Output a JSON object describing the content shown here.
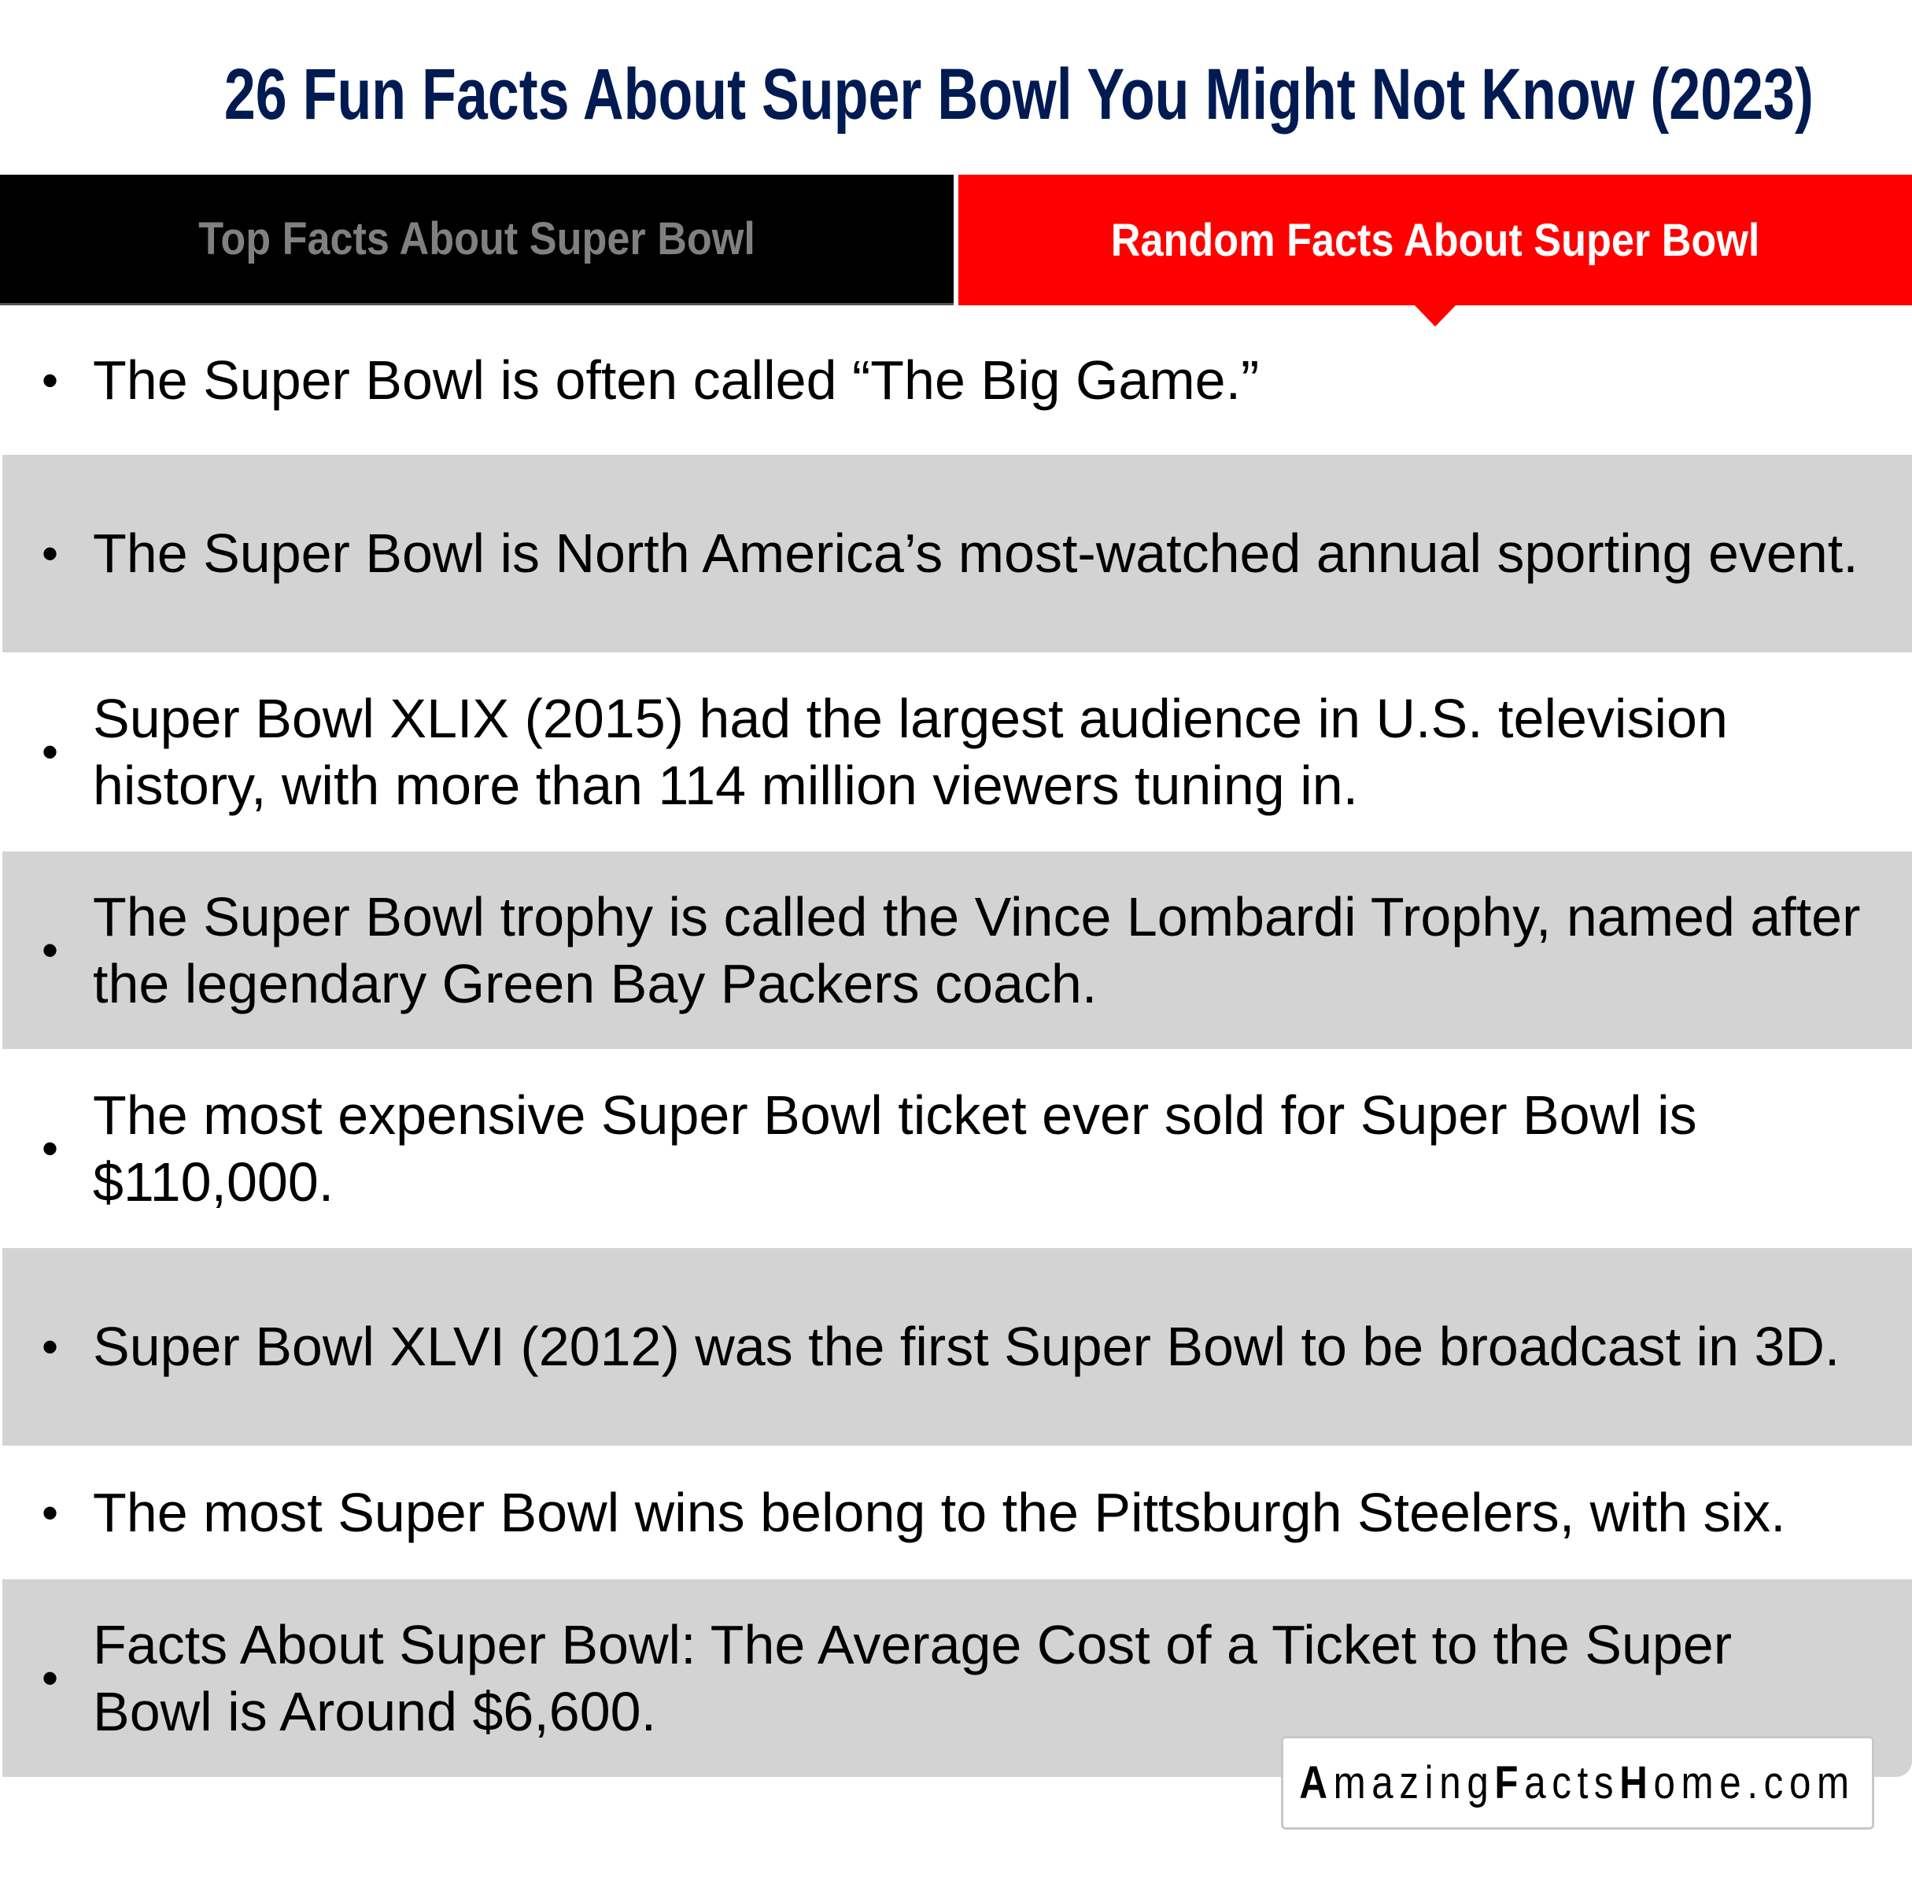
{
  "title": "26 Fun Facts About Super Bowl You Might Not Know (2023)",
  "tabs": [
    {
      "label": "Top Facts About Super Bowl",
      "active": false
    },
    {
      "label": "Random Facts About Super Bowl",
      "active": true
    }
  ],
  "colors": {
    "title": "#001a52",
    "active_tab": "#ff0000",
    "inactive_tab": "#000000",
    "row_alt": "#d3d3d3"
  },
  "facts": [
    "The Super Bowl is often called “The Big Game.”",
    "The Super Bowl is North America’s most-watched annual sporting event.",
    "Super Bowl XLIX (2015) had the largest audience in U.S. television history, with more than 114 million viewers tuning in.",
    "The Super Bowl trophy is called the Vince Lombardi Trophy, named after the legendary Green Bay Packers coach.",
    "The most expensive Super Bowl ticket ever sold for Super Bowl is $110,000.",
    "Super Bowl XLVI (2012) was the first Super Bowl to be broadcast in 3D.",
    "The most Super Bowl wins belong to the Pittsburgh Steelers, with six.",
    "Facts About Super Bowl: The Average Cost of a Ticket to the Super Bowl is Around $6,600."
  ],
  "watermark": {
    "part1": "A",
    "part2": "mazing",
    "part3": "F",
    "part4": "acts",
    "part5": "H",
    "part6": "ome.com"
  }
}
